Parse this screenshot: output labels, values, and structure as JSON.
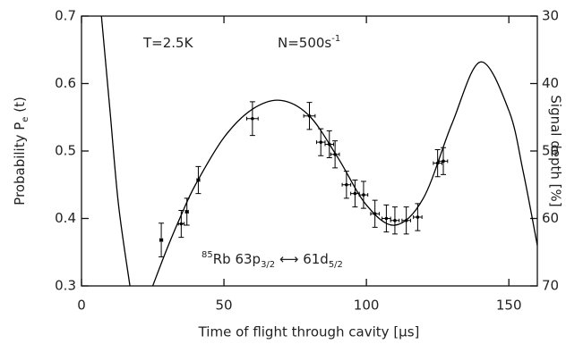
{
  "chart_data": {
    "type": "scatter",
    "xlim": [
      0,
      160
    ],
    "xticks": [
      0,
      50,
      100,
      150
    ],
    "ylim": [
      0.3,
      0.7
    ],
    "yticks": [
      {
        "value": 0.3,
        "label": "0.3"
      },
      {
        "value": 0.4,
        "label": "0.4"
      },
      {
        "value": 0.5,
        "label": "0.5"
      },
      {
        "value": 0.6,
        "label": "0.6"
      },
      {
        "value": 0.7,
        "label": "0.7"
      }
    ],
    "y2lim": [
      70,
      30
    ],
    "y2ticks": [
      30,
      40,
      50,
      60,
      70
    ],
    "x_label": "Time of flight through cavity [μs]",
    "y_label": [
      {
        "text": "Probability P"
      },
      {
        "text": "e",
        "style": "sub"
      },
      {
        "text": " (t)"
      }
    ],
    "y2_label": "Signal depth [%]",
    "annotations": [
      [
        {
          "text": "T=2.5K"
        }
      ],
      [
        {
          "text": "N=500s"
        },
        {
          "text": "-1",
          "style": "sup"
        }
      ],
      [
        {
          "text": "85",
          "style": "sup"
        },
        {
          "text": "Rb  63p"
        },
        {
          "text": "3/2",
          "style": "sub"
        },
        {
          "text": " ⟷ 61d"
        },
        {
          "text": "5/2",
          "style": "sub"
        }
      ]
    ],
    "series": [
      {
        "type": "line",
        "color": "#000000",
        "x": [
          7,
          10,
          13,
          17,
          21,
          25,
          30,
          35,
          40,
          50,
          60,
          70,
          80,
          90,
          100,
          110,
          120,
          130,
          140,
          150,
          155,
          160
        ],
        "values": [
          0.7,
          0.56,
          0.42,
          0.3,
          null,
          0.3,
          0.355,
          0.405,
          0.45,
          0.52,
          0.562,
          0.575,
          0.552,
          0.49,
          0.42,
          0.39,
          0.43,
          0.54,
          0.632,
          0.56,
          0.47,
          0.36
        ]
      },
      {
        "type": "scatter",
        "color": "#000000",
        "x": [
          28,
          35,
          37,
          41,
          60,
          80,
          84,
          87,
          89,
          93,
          96,
          99,
          103,
          107,
          110,
          114,
          118,
          125,
          127
        ],
        "values": [
          0.368,
          0.392,
          0.41,
          0.457,
          0.548,
          0.552,
          0.513,
          0.51,
          0.495,
          0.45,
          0.437,
          0.435,
          0.407,
          0.4,
          0.397,
          0.397,
          0.402,
          0.482,
          0.485
        ],
        "yerr": [
          0.025,
          0.02,
          0.02,
          0.02,
          0.025,
          0.02,
          0.02,
          0.02,
          0.02,
          0.02,
          0.02,
          0.02,
          0.02,
          0.02,
          0.02,
          0.02,
          0.02,
          0.02,
          0.02
        ],
        "xerr": [
          0.5,
          1,
          0.5,
          0.5,
          2,
          2,
          1.5,
          1.5,
          1.5,
          1.5,
          1.5,
          1.5,
          1.5,
          1.5,
          1.5,
          1.5,
          1.5,
          1.5,
          1.5
        ]
      }
    ]
  }
}
